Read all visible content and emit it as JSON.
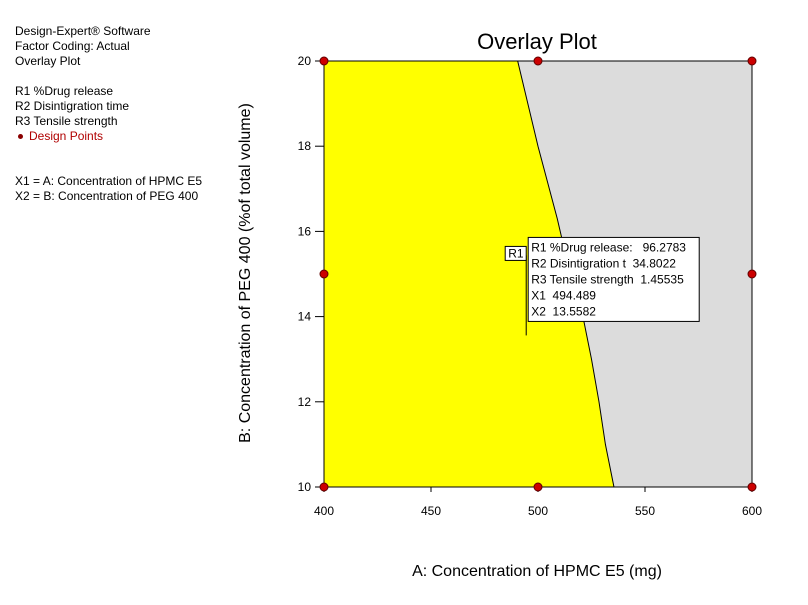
{
  "sidebar": {
    "software": "Design-Expert® Software",
    "factor_coding": "Factor Coding: Actual",
    "plot_name": "Overlay Plot",
    "responses": [
      "R1 %Drug release",
      "R2 Disintigration time",
      "R3 Tensile strength"
    ],
    "design_points_label": "Design Points",
    "x1_def": "X1 = A: Concentration of HPMC E5",
    "x2_def": "X2 = B: Concentration of PEG 400"
  },
  "colors": {
    "feasible": "#ffff00",
    "infeasible": "#dcdcdc",
    "design_point": "#cc0000",
    "design_point_stroke": "#600000"
  },
  "chart_data": {
    "type": "scatter",
    "title": "Overlay Plot",
    "xlabel": "A: Concentration of HPMC E5 (mg)",
    "ylabel": "B: Concentration of PEG 400 (%of total volume)",
    "xlim": [
      400,
      600
    ],
    "ylim": [
      10,
      20
    ],
    "xticks": [
      400,
      450,
      500,
      550,
      600
    ],
    "yticks": [
      10,
      12,
      14,
      16,
      18,
      20
    ],
    "grid": false,
    "feasible_region_boundary": [
      [
        490.5,
        20
      ],
      [
        500,
        18
      ],
      [
        509,
        16.3
      ],
      [
        515,
        15
      ],
      [
        521,
        14
      ],
      [
        525,
        13
      ],
      [
        528.5,
        12
      ],
      [
        531.5,
        11
      ],
      [
        535.5,
        10
      ]
    ],
    "design_points": [
      [
        400,
        10
      ],
      [
        500,
        10
      ],
      [
        600,
        10
      ],
      [
        400,
        15
      ],
      [
        600,
        15
      ],
      [
        400,
        20
      ],
      [
        500,
        20
      ],
      [
        600,
        20
      ]
    ],
    "flag": {
      "tag": "R1",
      "x": 494.489,
      "y": 13.5582,
      "lines": [
        "R1 %Drug release:   96.2783",
        "R2 Disintigration t  34.8022",
        "R3 Tensile strength  1.45535",
        "X1  494.489",
        "X2  13.5582"
      ]
    }
  }
}
